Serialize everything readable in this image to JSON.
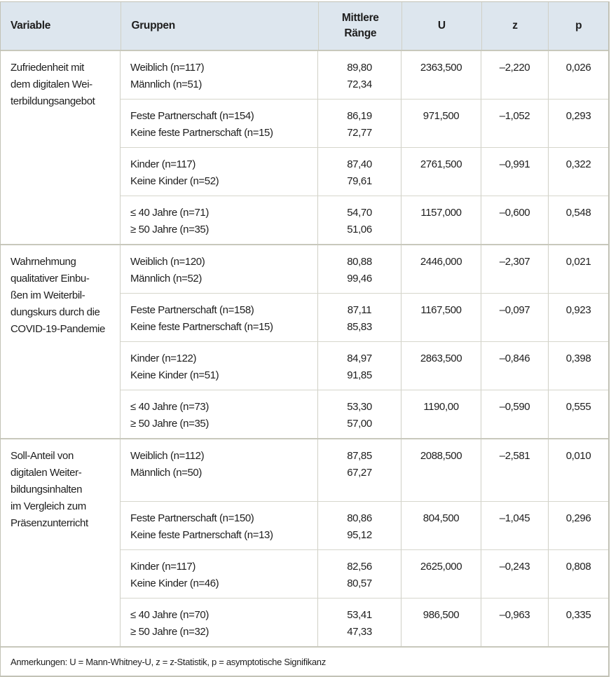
{
  "table": {
    "headers": {
      "variable": "Variable",
      "gruppen": "Gruppen",
      "mittlere_raenge_1": "Mittlere",
      "mittlere_raenge_2": "Ränge",
      "u": "U",
      "z": "z",
      "p": "p"
    },
    "blocks": [
      {
        "variable_lines": [
          "Zufriedenheit mit",
          "dem digitalen Wei-",
          "terbildungsangebot"
        ],
        "rows": [
          {
            "group_a": "Weiblich (n=117)",
            "group_b": "Männlich (n=51)",
            "rank_a": "89,80",
            "rank_b": "72,34",
            "u": "2363,500",
            "z": "–2,220",
            "p": "0,026"
          },
          {
            "group_a": "Feste Partnerschaft (n=154)",
            "group_b": "Keine feste Partnerschaft (n=15)",
            "rank_a": "86,19",
            "rank_b": "72,77",
            "u": "971,500",
            "z": "–1,052",
            "p": "0,293"
          },
          {
            "group_a": "Kinder (n=117)",
            "group_b": "Keine Kinder (n=52)",
            "rank_a": "87,40",
            "rank_b": "79,61",
            "u": "2761,500",
            "z": "–0,991",
            "p": "0,322"
          },
          {
            "group_a": "≤ 40 Jahre (n=71)",
            "group_b": "≥ 50 Jahre (n=35)",
            "rank_a": "54,70",
            "rank_b": "51,06",
            "u": "1157,000",
            "z": "–0,600",
            "p": "0,548"
          }
        ]
      },
      {
        "variable_lines": [
          "Wahrnehmung",
          "qualitativer Einbu-",
          "ßen im Weiterbil-",
          "dungskurs durch die",
          "COVID-19-Pandemie"
        ],
        "rows": [
          {
            "group_a": "Weiblich (n=120)",
            "group_b": "Männlich (n=52)",
            "rank_a": "80,88",
            "rank_b": "99,46",
            "u": "2446,000",
            "z": "–2,307",
            "p": "0,021"
          },
          {
            "group_a": "Feste Partnerschaft (n=158)",
            "group_b": "Keine feste Partnerschaft (n=15)",
            "rank_a": "87,11",
            "rank_b": "85,83",
            "u": "1167,500",
            "z": "–0,097",
            "p": "0,923"
          },
          {
            "group_a": "Kinder (n=122)",
            "group_b": "Keine Kinder (n=51)",
            "rank_a": "84,97",
            "rank_b": "91,85",
            "u": "2863,500",
            "z": "–0,846",
            "p": "0,398"
          },
          {
            "group_a": "≤ 40 Jahre (n=73)",
            "group_b": "≥ 50 Jahre (n=35)",
            "rank_a": "53,30",
            "rank_b": "57,00",
            "u": "1190,00",
            "z": "–0,590",
            "p": "0,555"
          }
        ]
      },
      {
        "variable_lines": [
          "Soll-Anteil von",
          "digitalen Weiter-",
          "bildungsinhalten",
          "im Vergleich zum",
          "Präsenzunterricht"
        ],
        "rows": [
          {
            "group_a": "Weiblich (n=112)",
            "group_b": "Männlich (n=50)",
            "rank_a": "87,85",
            "rank_b": "67,27",
            "u": "2088,500",
            "z": "–2,581",
            "p": "0,010"
          },
          {
            "group_a": "Feste Partnerschaft (n=150)",
            "group_b": "Keine feste Partnerschaft (n=13)",
            "rank_a": "80,86",
            "rank_b": "95,12",
            "u": "804,500",
            "z": "–1,045",
            "p": "0,296"
          },
          {
            "group_a": "Kinder (n=117)",
            "group_b": "Keine Kinder (n=46)",
            "rank_a": "82,56",
            "rank_b": "80,57",
            "u": "2625,000",
            "z": "–0,243",
            "p": "0,808"
          },
          {
            "group_a": "≤ 40 Jahre (n=70)",
            "group_b": "≥ 50 Jahre (n=32)",
            "rank_a": "53,41",
            "rank_b": "47,33",
            "u": "986,500",
            "z": "–0,963",
            "p": "0,335"
          }
        ]
      }
    ],
    "footnote": "Anmerkungen: U = Mann-Whitney-U, z = z-Statistik, p = asymptotische Signifikanz"
  },
  "colors": {
    "header_bg": "#dde6ee",
    "border": "#c8c8bc",
    "text": "#1e1e1e"
  }
}
